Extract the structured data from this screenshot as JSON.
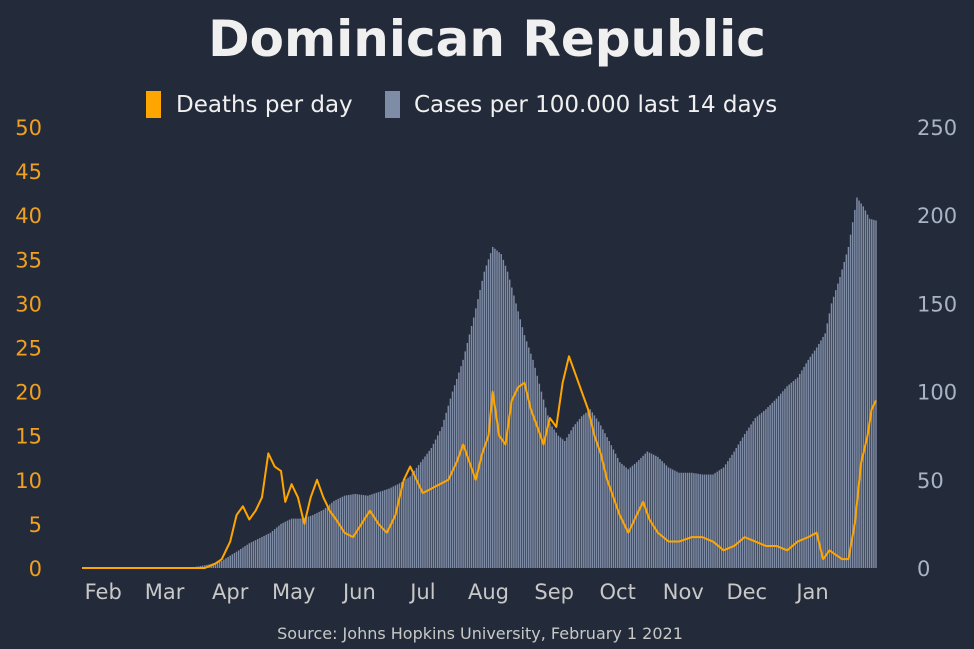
{
  "colors": {
    "background": "#232b3b",
    "deaths": "#ffa500",
    "cases": "#7f8ca6",
    "title": "#f0f0f0",
    "left_axis": "#f0a020",
    "right_axis": "#a8b4c6",
    "x_axis": "#c8c8c8"
  },
  "chart_data": {
    "type": "bar",
    "title": "Dominican Republic",
    "source": "Source: Johns Hopkins University, February 1 2021",
    "legend": {
      "placement": "top-center",
      "entries": [
        {
          "label": "Deaths per day",
          "color": "#ffa500"
        },
        {
          "label": "Cases per 100.000 last 14 days",
          "color": "#7f8ca6"
        }
      ]
    },
    "x_start_date": "2020-01-22",
    "x_end_date": "2021-01-31",
    "x_ticks": [
      {
        "label": "Feb",
        "date": "2020-02-01"
      },
      {
        "label": "Mar",
        "date": "2020-03-01"
      },
      {
        "label": "Apr",
        "date": "2020-04-01"
      },
      {
        "label": "May",
        "date": "2020-05-01"
      },
      {
        "label": "Jun",
        "date": "2020-06-01"
      },
      {
        "label": "Jul",
        "date": "2020-07-01"
      },
      {
        "label": "Aug",
        "date": "2020-08-01"
      },
      {
        "label": "Sep",
        "date": "2020-09-01"
      },
      {
        "label": "Oct",
        "date": "2020-10-01"
      },
      {
        "label": "Nov",
        "date": "2020-11-01"
      },
      {
        "label": "Dec",
        "date": "2020-12-01"
      },
      {
        "label": "Jan",
        "date": "2021-01-01"
      }
    ],
    "y_left": {
      "label": "",
      "ylim": [
        0,
        50
      ],
      "ticks": [
        "0",
        "5",
        "10",
        "15",
        "20",
        "25",
        "30",
        "35",
        "40",
        "45",
        "50"
      ]
    },
    "y_right": {
      "label": "",
      "ylim": [
        0,
        250
      ],
      "ticks": [
        "0",
        "50",
        "100",
        "150",
        "200",
        "250"
      ]
    },
    "grid": false,
    "series": [
      {
        "name": "Cases per 100.000 last 14 days",
        "kind": "bar",
        "axis": "right",
        "points": [
          [
            "2020-01-22",
            0
          ],
          [
            "2020-03-01",
            0
          ],
          [
            "2020-03-15",
            0.5
          ],
          [
            "2020-03-22",
            2
          ],
          [
            "2020-03-28",
            4
          ],
          [
            "2020-04-01",
            7
          ],
          [
            "2020-04-05",
            10
          ],
          [
            "2020-04-10",
            14
          ],
          [
            "2020-04-15",
            17
          ],
          [
            "2020-04-20",
            20
          ],
          [
            "2020-04-25",
            25
          ],
          [
            "2020-04-30",
            28
          ],
          [
            "2020-05-05",
            28
          ],
          [
            "2020-05-10",
            30
          ],
          [
            "2020-05-15",
            33
          ],
          [
            "2020-05-20",
            38
          ],
          [
            "2020-05-25",
            41
          ],
          [
            "2020-05-30",
            42
          ],
          [
            "2020-06-05",
            41
          ],
          [
            "2020-06-10",
            43
          ],
          [
            "2020-06-15",
            45
          ],
          [
            "2020-06-20",
            48
          ],
          [
            "2020-06-25",
            52
          ],
          [
            "2020-06-30",
            60
          ],
          [
            "2020-07-05",
            68
          ],
          [
            "2020-07-10",
            80
          ],
          [
            "2020-07-15",
            100
          ],
          [
            "2020-07-20",
            118
          ],
          [
            "2020-07-25",
            142
          ],
          [
            "2020-07-30",
            168
          ],
          [
            "2020-08-03",
            182
          ],
          [
            "2020-08-07",
            178
          ],
          [
            "2020-08-10",
            168
          ],
          [
            "2020-08-14",
            150
          ],
          [
            "2020-08-18",
            132
          ],
          [
            "2020-08-22",
            118
          ],
          [
            "2020-08-26",
            100
          ],
          [
            "2020-08-30",
            82
          ],
          [
            "2020-09-03",
            75
          ],
          [
            "2020-09-06",
            72
          ],
          [
            "2020-09-10",
            80
          ],
          [
            "2020-09-14",
            86
          ],
          [
            "2020-09-18",
            90
          ],
          [
            "2020-09-22",
            83
          ],
          [
            "2020-09-27",
            72
          ],
          [
            "2020-10-02",
            60
          ],
          [
            "2020-10-06",
            56
          ],
          [
            "2020-10-10",
            60
          ],
          [
            "2020-10-15",
            66
          ],
          [
            "2020-10-20",
            63
          ],
          [
            "2020-10-25",
            57
          ],
          [
            "2020-10-30",
            54
          ],
          [
            "2020-11-05",
            54
          ],
          [
            "2020-11-10",
            53
          ],
          [
            "2020-11-15",
            53
          ],
          [
            "2020-11-20",
            57
          ],
          [
            "2020-11-25",
            66
          ],
          [
            "2020-11-30",
            76
          ],
          [
            "2020-12-05",
            85
          ],
          [
            "2020-12-10",
            90
          ],
          [
            "2020-12-15",
            96
          ],
          [
            "2020-12-20",
            103
          ],
          [
            "2020-12-25",
            108
          ],
          [
            "2020-12-30",
            118
          ],
          [
            "2021-01-03",
            125
          ],
          [
            "2021-01-07",
            133
          ],
          [
            "2021-01-10",
            150
          ],
          [
            "2021-01-14",
            165
          ],
          [
            "2021-01-18",
            182
          ],
          [
            "2021-01-22",
            210
          ],
          [
            "2021-01-25",
            205
          ],
          [
            "2021-01-28",
            198
          ],
          [
            "2021-01-31",
            197
          ]
        ]
      },
      {
        "name": "Deaths per day",
        "kind": "line",
        "axis": "left",
        "points": [
          [
            "2020-01-22",
            0
          ],
          [
            "2020-03-20",
            0
          ],
          [
            "2020-03-25",
            0.5
          ],
          [
            "2020-03-28",
            1
          ],
          [
            "2020-04-01",
            3
          ],
          [
            "2020-04-04",
            6
          ],
          [
            "2020-04-07",
            7
          ],
          [
            "2020-04-10",
            5.5
          ],
          [
            "2020-04-13",
            6.5
          ],
          [
            "2020-04-16",
            8
          ],
          [
            "2020-04-19",
            13
          ],
          [
            "2020-04-22",
            11.5
          ],
          [
            "2020-04-25",
            11
          ],
          [
            "2020-04-27",
            7.5
          ],
          [
            "2020-04-30",
            9.5
          ],
          [
            "2020-05-03",
            8
          ],
          [
            "2020-05-06",
            5
          ],
          [
            "2020-05-09",
            8
          ],
          [
            "2020-05-12",
            10
          ],
          [
            "2020-05-15",
            8
          ],
          [
            "2020-05-18",
            6.5
          ],
          [
            "2020-05-21",
            5.5
          ],
          [
            "2020-05-25",
            4
          ],
          [
            "2020-05-29",
            3.5
          ],
          [
            "2020-06-02",
            5
          ],
          [
            "2020-06-06",
            6.5
          ],
          [
            "2020-06-10",
            5
          ],
          [
            "2020-06-14",
            4
          ],
          [
            "2020-06-18",
            6
          ],
          [
            "2020-06-22",
            10
          ],
          [
            "2020-06-25",
            11.5
          ],
          [
            "2020-06-28",
            10
          ],
          [
            "2020-07-01",
            8.5
          ],
          [
            "2020-07-05",
            9
          ],
          [
            "2020-07-09",
            9.5
          ],
          [
            "2020-07-13",
            10
          ],
          [
            "2020-07-17",
            12
          ],
          [
            "2020-07-20",
            14
          ],
          [
            "2020-07-23",
            12
          ],
          [
            "2020-07-26",
            10
          ],
          [
            "2020-07-29",
            13
          ],
          [
            "2020-08-01",
            15
          ],
          [
            "2020-08-03",
            20
          ],
          [
            "2020-08-06",
            15
          ],
          [
            "2020-08-09",
            14
          ],
          [
            "2020-08-12",
            19
          ],
          [
            "2020-08-15",
            20.5
          ],
          [
            "2020-08-18",
            21
          ],
          [
            "2020-08-21",
            18
          ],
          [
            "2020-08-24",
            16
          ],
          [
            "2020-08-27",
            14
          ],
          [
            "2020-08-30",
            17
          ],
          [
            "2020-09-02",
            16
          ],
          [
            "2020-09-05",
            21
          ],
          [
            "2020-09-08",
            24
          ],
          [
            "2020-09-11",
            22
          ],
          [
            "2020-09-14",
            20
          ],
          [
            "2020-09-17",
            18
          ],
          [
            "2020-09-20",
            15
          ],
          [
            "2020-09-23",
            13
          ],
          [
            "2020-09-26",
            10
          ],
          [
            "2020-09-29",
            8
          ],
          [
            "2020-10-02",
            6
          ],
          [
            "2020-10-06",
            4
          ],
          [
            "2020-10-10",
            6
          ],
          [
            "2020-10-13",
            7.5
          ],
          [
            "2020-10-16",
            5.5
          ],
          [
            "2020-10-20",
            4
          ],
          [
            "2020-10-25",
            3
          ],
          [
            "2020-10-30",
            3
          ],
          [
            "2020-11-05",
            3.5
          ],
          [
            "2020-11-10",
            3.5
          ],
          [
            "2020-11-15",
            3
          ],
          [
            "2020-11-20",
            2
          ],
          [
            "2020-11-25",
            2.5
          ],
          [
            "2020-11-30",
            3.5
          ],
          [
            "2020-12-05",
            3
          ],
          [
            "2020-12-10",
            2.5
          ],
          [
            "2020-12-15",
            2.5
          ],
          [
            "2020-12-20",
            2
          ],
          [
            "2020-12-25",
            3
          ],
          [
            "2020-12-30",
            3.5
          ],
          [
            "2021-01-03",
            4
          ],
          [
            "2021-01-06",
            1
          ],
          [
            "2021-01-09",
            2
          ],
          [
            "2021-01-12",
            1.5
          ],
          [
            "2021-01-15",
            1
          ],
          [
            "2021-01-18",
            1
          ],
          [
            "2021-01-21",
            5
          ],
          [
            "2021-01-24",
            12
          ],
          [
            "2021-01-27",
            15
          ],
          [
            "2021-01-29",
            18
          ],
          [
            "2021-01-31",
            19
          ]
        ]
      }
    ]
  }
}
